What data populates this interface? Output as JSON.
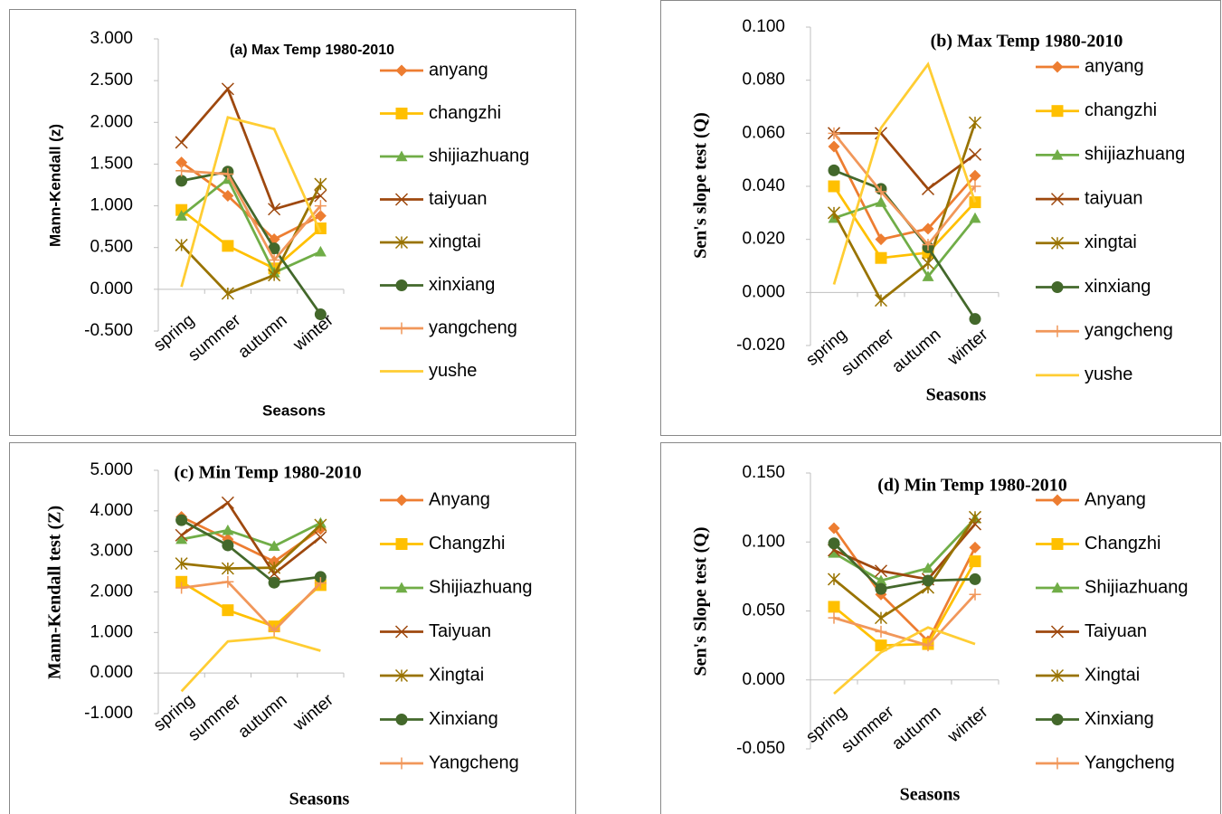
{
  "chart_data": [
    {
      "type": "line",
      "title": "(a) Max Temp 1980-2010",
      "y_label": "Mann-Kendall (z)",
      "x_label": "Seasons",
      "categories": [
        "spring",
        "summer",
        "autumn",
        "winter"
      ],
      "ylim": [
        -0.5,
        3.0
      ],
      "yticks": [
        {
          "value": -0.5,
          "label": "-0.500"
        },
        {
          "value": 0,
          "label": "0.000"
        },
        {
          "value": 0.5,
          "label": "0.500"
        },
        {
          "value": 1,
          "label": "1.000"
        },
        {
          "value": 1.5,
          "label": "1.500"
        },
        {
          "value": 2,
          "label": "2.000"
        },
        {
          "value": 2.5,
          "label": "2.500"
        },
        {
          "value": 3,
          "label": "3.000"
        }
      ],
      "series": [
        {
          "name": "anyang",
          "color": "#ED7D31",
          "marker": "diamond",
          "values": [
            1.52,
            1.12,
            0.6,
            0.88
          ]
        },
        {
          "name": "changzhi",
          "color": "#FFC000",
          "marker": "square",
          "values": [
            0.95,
            0.52,
            0.25,
            0.73
          ]
        },
        {
          "name": "shijiazhuang",
          "color": "#70AD47",
          "marker": "triangle",
          "values": [
            0.88,
            1.32,
            0.2,
            0.45
          ]
        },
        {
          "name": "taiyuan",
          "color": "#9E480E",
          "marker": "x",
          "values": [
            1.76,
            2.4,
            0.96,
            1.12
          ]
        },
        {
          "name": "xingtai",
          "color": "#997300",
          "marker": "star",
          "values": [
            0.53,
            -0.05,
            0.17,
            1.26
          ]
        },
        {
          "name": "xinxiang",
          "color": "#43682B",
          "marker": "circle",
          "values": [
            1.3,
            1.41,
            0.49,
            -0.3
          ]
        },
        {
          "name": "yangcheng",
          "color": "#F1975A",
          "marker": "plus",
          "values": [
            1.42,
            1.38,
            0.35,
            1.0
          ]
        },
        {
          "name": "yushe",
          "color": "#FFCD33",
          "marker": "none",
          "values": [
            0.03,
            2.06,
            1.92,
            0.68
          ]
        }
      ]
    },
    {
      "type": "line",
      "title": "(b) Max Temp 1980-2010",
      "y_label": "Sen's slope test (Q)",
      "x_label": "Seasons",
      "categories": [
        "spring",
        "summer",
        "autumn",
        "winter"
      ],
      "ylim": [
        -0.02,
        0.1
      ],
      "yticks": [
        {
          "value": -0.02,
          "label": "-0.020"
        },
        {
          "value": 0,
          "label": "0.000"
        },
        {
          "value": 0.02,
          "label": "0.020"
        },
        {
          "value": 0.04,
          "label": "0.040"
        },
        {
          "value": 0.06,
          "label": "0.060"
        },
        {
          "value": 0.08,
          "label": "0.080"
        },
        {
          "value": 0.1,
          "label": "0.100"
        }
      ],
      "series": [
        {
          "name": "anyang",
          "color": "#ED7D31",
          "marker": "diamond",
          "values": [
            0.055,
            0.02,
            0.024,
            0.044
          ]
        },
        {
          "name": "changzhi",
          "color": "#FFC000",
          "marker": "square",
          "values": [
            0.04,
            0.013,
            0.015,
            0.034
          ]
        },
        {
          "name": "shijiazhuang",
          "color": "#70AD47",
          "marker": "triangle",
          "values": [
            0.028,
            0.034,
            0.006,
            0.028
          ]
        },
        {
          "name": "taiyuan",
          "color": "#9E480E",
          "marker": "x",
          "values": [
            0.06,
            0.06,
            0.039,
            0.052
          ]
        },
        {
          "name": "xingtai",
          "color": "#997300",
          "marker": "star",
          "values": [
            0.03,
            -0.003,
            0.011,
            0.064
          ]
        },
        {
          "name": "xinxiang",
          "color": "#43682B",
          "marker": "circle",
          "values": [
            0.046,
            0.039,
            0.017,
            -0.01
          ]
        },
        {
          "name": "yangcheng",
          "color": "#F1975A",
          "marker": "plus",
          "values": [
            0.06,
            0.038,
            0.018,
            0.04
          ]
        },
        {
          "name": "yushe",
          "color": "#FFCD33",
          "marker": "none",
          "values": [
            0.003,
            0.062,
            0.086,
            0.034
          ]
        }
      ]
    },
    {
      "type": "line",
      "title": "(c) Min Temp 1980-2010",
      "y_label": "Mann-Kendall test (Z)",
      "x_label": "Seasons",
      "categories": [
        "spring",
        "summer",
        "autumn",
        "winter"
      ],
      "ylim": [
        -1,
        5
      ],
      "yticks": [
        {
          "value": -1,
          "label": "-1.000"
        },
        {
          "value": 0,
          "label": "0.000"
        },
        {
          "value": 1,
          "label": "1.000"
        },
        {
          "value": 2,
          "label": "2.000"
        },
        {
          "value": 3,
          "label": "3.000"
        },
        {
          "value": 4,
          "label": "4.000"
        },
        {
          "value": 5,
          "label": "5.000"
        }
      ],
      "series": [
        {
          "name": "Anyang",
          "color": "#ED7D31",
          "marker": "diamond",
          "values": [
            3.85,
            3.3,
            2.75,
            3.55
          ]
        },
        {
          "name": "Changzhi",
          "color": "#FFC000",
          "marker": "square",
          "values": [
            2.25,
            1.55,
            1.15,
            2.17
          ]
        },
        {
          "name": "Shijiazhuang",
          "color": "#70AD47",
          "marker": "triangle",
          "values": [
            3.3,
            3.52,
            3.13,
            3.7
          ]
        },
        {
          "name": "Taiyuan",
          "color": "#9E480E",
          "marker": "x",
          "values": [
            3.4,
            4.2,
            2.45,
            3.35
          ]
        },
        {
          "name": "Xingtai",
          "color": "#997300",
          "marker": "star",
          "values": [
            2.7,
            2.58,
            2.6,
            3.65
          ]
        },
        {
          "name": "Xinxiang",
          "color": "#43682B",
          "marker": "circle",
          "values": [
            3.77,
            3.15,
            2.23,
            2.37
          ]
        },
        {
          "name": "Yangcheng",
          "color": "#F1975A",
          "marker": "plus",
          "values": [
            2.1,
            2.25,
            1.05,
            2.22
          ]
        },
        {
          "color": "#FFCD33",
          "marker": "none",
          "values": [
            -0.45,
            0.78,
            0.88,
            0.55
          ]
        }
      ]
    },
    {
      "type": "line",
      "title": "(d) Min Temp 1980-2010",
      "y_label": "Sen's Slope test (Q)",
      "x_label": "Seasons",
      "categories": [
        "spring",
        "summer",
        "autumn",
        "winter"
      ],
      "ylim": [
        -0.05,
        0.15
      ],
      "yticks": [
        {
          "value": -0.05,
          "label": "-0.050"
        },
        {
          "value": 0,
          "label": "0.000"
        },
        {
          "value": 0.05,
          "label": "0.050"
        },
        {
          "value": 0.1,
          "label": "0.100"
        },
        {
          "value": 0.15,
          "label": "0.150"
        }
      ],
      "series": [
        {
          "name": "Anyang",
          "color": "#ED7D31",
          "marker": "diamond",
          "values": [
            0.11,
            0.062,
            0.028,
            0.096
          ]
        },
        {
          "name": "Changzhi",
          "color": "#FFC000",
          "marker": "square",
          "values": [
            0.053,
            0.025,
            0.026,
            0.086
          ]
        },
        {
          "name": "Shijiazhuang",
          "color": "#70AD47",
          "marker": "triangle",
          "values": [
            0.092,
            0.072,
            0.081,
            0.117
          ]
        },
        {
          "name": "Taiyuan",
          "color": "#9E480E",
          "marker": "x",
          "values": [
            0.094,
            0.079,
            0.073,
            0.113
          ]
        },
        {
          "name": "Xingtai",
          "color": "#997300",
          "marker": "star",
          "values": [
            0.073,
            0.045,
            0.067,
            0.118
          ]
        },
        {
          "name": "Xinxiang",
          "color": "#43682B",
          "marker": "circle",
          "values": [
            0.099,
            0.066,
            0.072,
            0.073
          ]
        },
        {
          "name": "Yangcheng",
          "color": "#F1975A",
          "marker": "plus",
          "values": [
            0.045,
            0.035,
            0.025,
            0.062
          ]
        },
        {
          "color": "#FFCD33",
          "marker": "none",
          "values": [
            -0.01,
            0.02,
            0.038,
            0.026
          ]
        }
      ]
    }
  ]
}
